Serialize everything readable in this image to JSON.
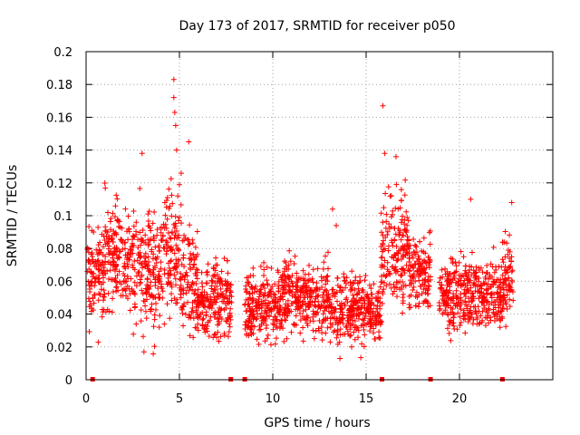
{
  "chart_data": {
    "type": "scatter",
    "title": "Day 173 of 2017, SRMTID for receiver p050",
    "xlabel": "GPS time / hours",
    "ylabel": "SRMTID / TECUs",
    "xlim": [
      0,
      25
    ],
    "ylim": [
      0,
      0.2
    ],
    "x_ticks": [
      0,
      5,
      10,
      15,
      20
    ],
    "x_tick_labels": [
      "0",
      "5",
      "10",
      "15",
      "20"
    ],
    "y_ticks": [
      0,
      0.02,
      0.04,
      0.06,
      0.08,
      0.1,
      0.12,
      0.14,
      0.16,
      0.18,
      0.2
    ],
    "y_tick_labels": [
      "0",
      "0.02",
      "0.04",
      "0.06",
      "0.08",
      "0.1",
      "0.12",
      "0.14",
      "0.16",
      "0.18",
      "0.2"
    ],
    "grid": true,
    "marker": "plus",
    "color": "#ff0000",
    "gap_markers_x": [
      0.35,
      7.75,
      8.5,
      15.85,
      18.45,
      22.3
    ],
    "series": [
      {
        "name": "SRMTID",
        "segments": [
          {
            "t_start": 0.0,
            "t_end": 1.0,
            "mean": 0.065,
            "spread": 0.018
          },
          {
            "t_start": 1.0,
            "t_end": 2.5,
            "mean": 0.075,
            "spread": 0.02
          },
          {
            "t_start": 2.5,
            "t_end": 4.0,
            "mean": 0.068,
            "spread": 0.022
          },
          {
            "t_start": 4.0,
            "t_end": 5.1,
            "mean": 0.078,
            "spread": 0.026
          },
          {
            "t_start": 5.1,
            "t_end": 6.0,
            "mean": 0.058,
            "spread": 0.02
          },
          {
            "t_start": 6.0,
            "t_end": 7.8,
            "mean": 0.047,
            "spread": 0.016
          },
          {
            "t_start": 8.5,
            "t_end": 10.5,
            "mean": 0.045,
            "spread": 0.014
          },
          {
            "t_start": 10.5,
            "t_end": 13.0,
            "mean": 0.05,
            "spread": 0.014
          },
          {
            "t_start": 13.0,
            "t_end": 15.8,
            "mean": 0.043,
            "spread": 0.013
          },
          {
            "t_start": 15.8,
            "t_end": 17.3,
            "mean": 0.08,
            "spread": 0.022
          },
          {
            "t_start": 17.3,
            "t_end": 18.45,
            "mean": 0.065,
            "spread": 0.015
          },
          {
            "t_start": 18.9,
            "t_end": 22.3,
            "mean": 0.052,
            "spread": 0.014
          },
          {
            "t_start": 22.3,
            "t_end": 22.9,
            "mean": 0.062,
            "spread": 0.016
          }
        ],
        "notable_points": [
          {
            "x": 4.7,
            "y": 0.183
          },
          {
            "x": 4.7,
            "y": 0.172
          },
          {
            "x": 4.75,
            "y": 0.163
          },
          {
            "x": 4.8,
            "y": 0.155
          },
          {
            "x": 4.85,
            "y": 0.14
          },
          {
            "x": 15.9,
            "y": 0.167
          },
          {
            "x": 16.0,
            "y": 0.138
          },
          {
            "x": 16.6,
            "y": 0.136
          },
          {
            "x": 5.5,
            "y": 0.145
          },
          {
            "x": 3.0,
            "y": 0.138
          },
          {
            "x": 13.2,
            "y": 0.104
          },
          {
            "x": 13.4,
            "y": 0.094
          },
          {
            "x": 22.8,
            "y": 0.108
          },
          {
            "x": 20.6,
            "y": 0.11
          },
          {
            "x": 13.6,
            "y": 0.013
          },
          {
            "x": 3.1,
            "y": 0.017
          }
        ]
      }
    ]
  }
}
